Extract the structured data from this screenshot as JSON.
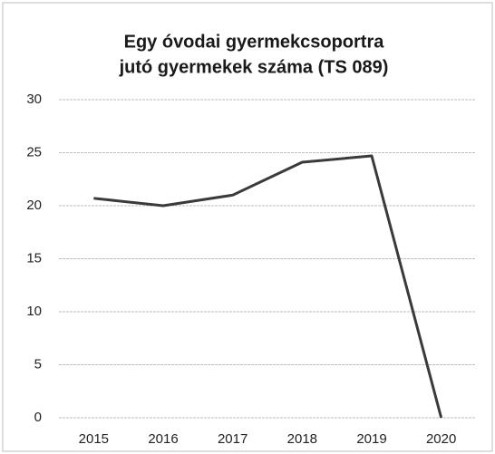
{
  "chart_data": {
    "type": "line",
    "title": [
      "Egy óvodai gyermekcsoportra",
      "jutó gyermekek száma (TS 089)"
    ],
    "categories": [
      "2015",
      "2016",
      "2017",
      "2018",
      "2019",
      "2020"
    ],
    "series": [
      {
        "name": null,
        "color": "#3a3a3a",
        "values": [
          20.7,
          20.0,
          21.0,
          24.1,
          24.7,
          0
        ]
      }
    ],
    "ylim": [
      0,
      30
    ],
    "yticks": [
      0,
      5,
      10,
      15,
      20,
      25,
      30
    ],
    "grid": true
  }
}
